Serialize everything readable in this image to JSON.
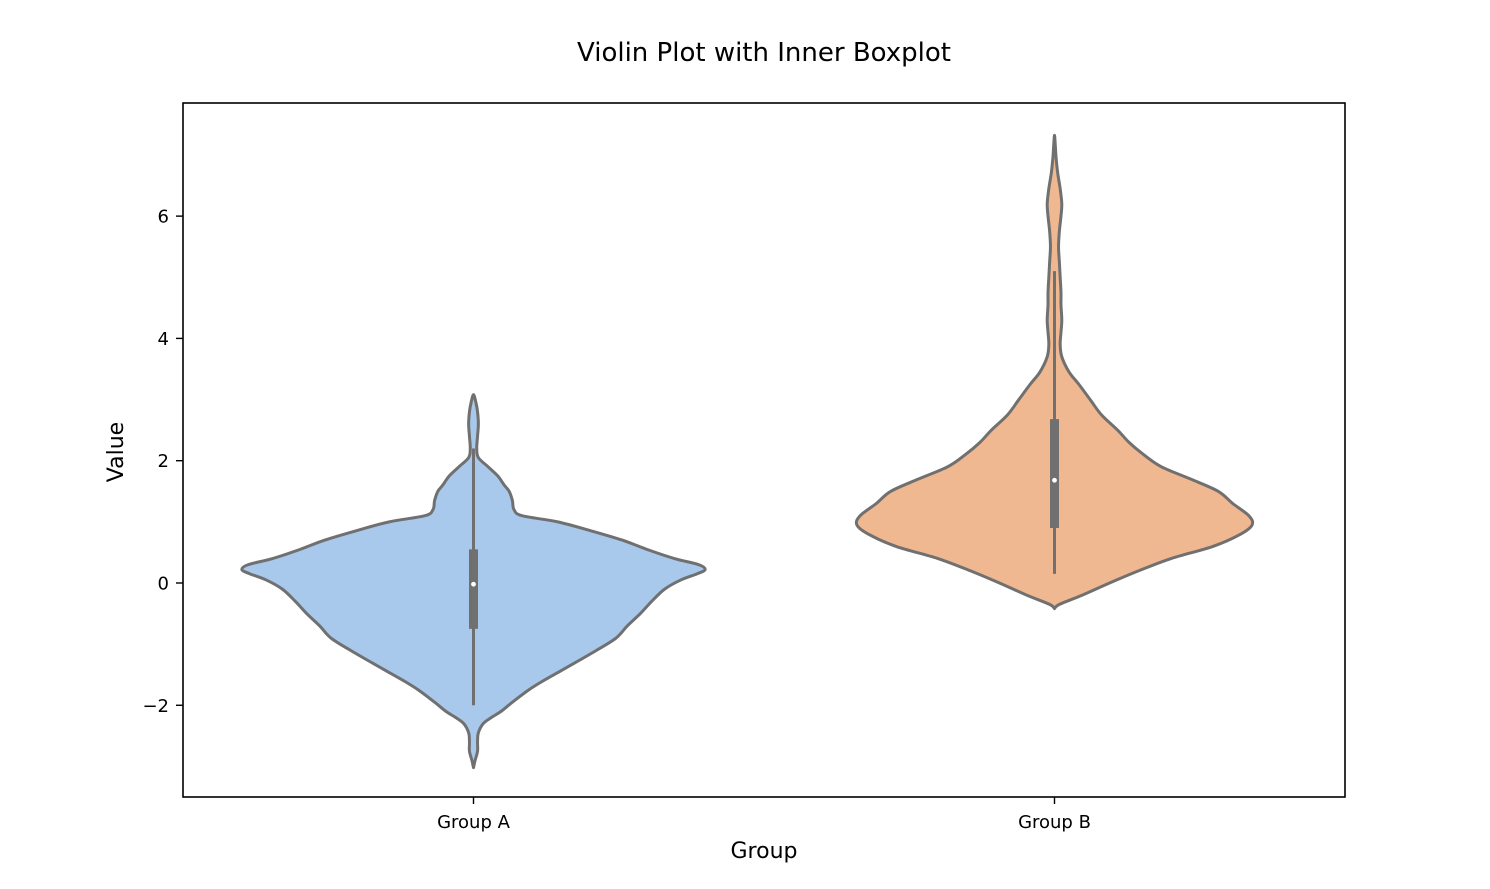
{
  "chart_data": {
    "type": "violin",
    "title": "Violin Plot with Inner Boxplot",
    "xlabel": "Group",
    "ylabel": "Value",
    "categories": [
      "Group A",
      "Group B"
    ],
    "ylim": [
      -3.5,
      7.85
    ],
    "yticks": [
      -2,
      0,
      2,
      4,
      6
    ],
    "ytick_labels": [
      "−2",
      "0",
      "2",
      "4",
      "6"
    ],
    "grid": false,
    "legend": "none",
    "colors": {
      "Group A": "#a8c8ec",
      "Group B": "#f0b891",
      "outline": "#707070",
      "box": "#707070",
      "median": "#ffffff"
    },
    "series": [
      {
        "category": "Group A",
        "box": {
          "whisker_low": -2.0,
          "q1": -0.75,
          "median": -0.02,
          "q3": 0.55,
          "whisker_high": 2.2
        },
        "density": [
          [
            -3.02,
            0.0
          ],
          [
            -2.9,
            0.01
          ],
          [
            -2.75,
            0.025
          ],
          [
            -2.6,
            0.025
          ],
          [
            -2.45,
            0.03
          ],
          [
            -2.3,
            0.06
          ],
          [
            -2.2,
            0.11
          ],
          [
            -2.1,
            0.17
          ],
          [
            -1.95,
            0.24
          ],
          [
            -1.75,
            0.34
          ],
          [
            -1.6,
            0.43
          ],
          [
            -1.45,
            0.53
          ],
          [
            -1.3,
            0.63
          ],
          [
            -1.1,
            0.76
          ],
          [
            -0.9,
            0.88
          ],
          [
            -0.7,
            0.95
          ],
          [
            -0.5,
            1.03
          ],
          [
            -0.3,
            1.1
          ],
          [
            -0.1,
            1.18
          ],
          [
            0.05,
            1.28
          ],
          [
            0.15,
            1.38
          ],
          [
            0.22,
            1.43
          ],
          [
            0.3,
            1.39
          ],
          [
            0.4,
            1.24
          ],
          [
            0.55,
            1.07
          ],
          [
            0.7,
            0.92
          ],
          [
            0.85,
            0.73
          ],
          [
            1.0,
            0.52
          ],
          [
            1.1,
            0.3
          ],
          [
            1.2,
            0.25
          ],
          [
            1.35,
            0.24
          ],
          [
            1.5,
            0.22
          ],
          [
            1.6,
            0.19
          ],
          [
            1.75,
            0.15
          ],
          [
            1.9,
            0.09
          ],
          [
            2.05,
            0.03
          ],
          [
            2.2,
            0.02
          ],
          [
            2.4,
            0.025
          ],
          [
            2.6,
            0.03
          ],
          [
            2.8,
            0.025
          ],
          [
            2.95,
            0.015
          ],
          [
            3.08,
            0.0
          ]
        ]
      },
      {
        "category": "Group B",
        "box": {
          "whisker_low": 0.15,
          "q1": 0.9,
          "median": 1.68,
          "q3": 2.68,
          "whisker_high": 5.1
        },
        "density": [
          [
            -0.42,
            0.0
          ],
          [
            -0.35,
            0.03
          ],
          [
            -0.2,
            0.17
          ],
          [
            0.0,
            0.34
          ],
          [
            0.2,
            0.52
          ],
          [
            0.4,
            0.72
          ],
          [
            0.6,
            0.98
          ],
          [
            0.8,
            1.15
          ],
          [
            0.95,
            1.22
          ],
          [
            1.1,
            1.2
          ],
          [
            1.3,
            1.1
          ],
          [
            1.5,
            1.01
          ],
          [
            1.7,
            0.84
          ],
          [
            1.9,
            0.66
          ],
          [
            2.1,
            0.55
          ],
          [
            2.3,
            0.46
          ],
          [
            2.5,
            0.39
          ],
          [
            2.75,
            0.29
          ],
          [
            3.0,
            0.22
          ],
          [
            3.25,
            0.15
          ],
          [
            3.45,
            0.09
          ],
          [
            3.7,
            0.045
          ],
          [
            3.9,
            0.035
          ],
          [
            4.1,
            0.04
          ],
          [
            4.3,
            0.045
          ],
          [
            4.55,
            0.04
          ],
          [
            4.75,
            0.04
          ],
          [
            5.0,
            0.035
          ],
          [
            5.25,
            0.03
          ],
          [
            5.5,
            0.025
          ],
          [
            5.75,
            0.03
          ],
          [
            6.0,
            0.04
          ],
          [
            6.2,
            0.045
          ],
          [
            6.45,
            0.035
          ],
          [
            6.7,
            0.02
          ],
          [
            6.95,
            0.01
          ],
          [
            7.15,
            0.005
          ],
          [
            7.32,
            0.0
          ]
        ]
      }
    ]
  }
}
